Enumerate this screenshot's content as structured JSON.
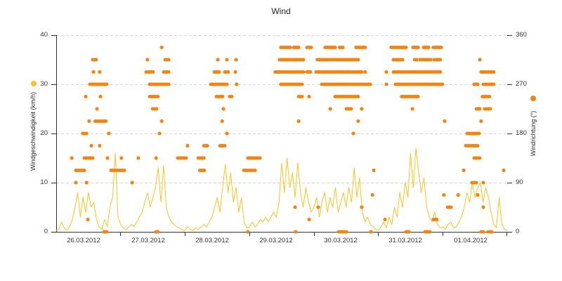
{
  "title": "Wind",
  "colors": {
    "speed": "#FFC222",
    "direction": "#F9820D",
    "grid": "#D8D8D8",
    "axis": "#333333"
  },
  "axes": {
    "left": {
      "title": "Windgeschwindigkeit (km/h)",
      "ticks": [
        "40",
        "30",
        "20",
        "10",
        "0"
      ],
      "range": [
        0,
        40
      ]
    },
    "right": {
      "title": "Windrichtung (°)",
      "ticks": [
        "360",
        "270",
        "180",
        "90",
        "0"
      ],
      "range": [
        0,
        360
      ]
    },
    "x": {
      "labels": [
        "26.03.2012",
        "27.03.2012",
        "28.03.2012",
        "29.03.2012",
        "30.03.2012",
        "31.03.2012",
        "01.04.2012"
      ]
    }
  },
  "chart_data": {
    "type": "line+scatter",
    "title": "Wind",
    "x_unit": "hours since 26.03.2012 00:00",
    "x_range": [
      0,
      168
    ],
    "grid": "dashed horizontal at left-axis 10/20/30/40 (right-axis 90/180/270/360)",
    "legend_position": "dots beside each y-axis title",
    "series": [
      {
        "name": "Windgeschwindigkeit",
        "type": "line",
        "axis": "left",
        "unit": "km/h",
        "color": "#FFC222",
        "ylim": [
          0,
          40
        ],
        "x_step_h": 1,
        "values": [
          0.3,
          0.5,
          2,
          0.8,
          0.3,
          1,
          2.5,
          5,
          8,
          3,
          7,
          4,
          8,
          5,
          6,
          2.5,
          1,
          0.5,
          2.5,
          1,
          5,
          7,
          16,
          3,
          1.5,
          0.8,
          0.4,
          1,
          1.5,
          1,
          2,
          3,
          4,
          6,
          8,
          5,
          7,
          9,
          13,
          6,
          13.5,
          5,
          3,
          2,
          1.5,
          1,
          0.8,
          0.4,
          0.3,
          1,
          0.5,
          0.3,
          0.8,
          0.5,
          1,
          1.5,
          1,
          2,
          3,
          5,
          7,
          4,
          9,
          13.7,
          8,
          12,
          6,
          9,
          4,
          7,
          2,
          0.8,
          1,
          2,
          1,
          1.5,
          2.5,
          2,
          3,
          2,
          3,
          4,
          3,
          6,
          14,
          8,
          15,
          9,
          12,
          7,
          14,
          8,
          5,
          9,
          6,
          4,
          5,
          7,
          3,
          6,
          8,
          4,
          7,
          5,
          9,
          4,
          6,
          8,
          5,
          9,
          6,
          13,
          7,
          11,
          4,
          2,
          3,
          1.5,
          1,
          0.5,
          0.3,
          1,
          2,
          0.8,
          3,
          1.5,
          5,
          3,
          8,
          5,
          10,
          7,
          16,
          9,
          17,
          12,
          8,
          11,
          5,
          3,
          2,
          4,
          1.5,
          0.8,
          1,
          0.5,
          1.5,
          2,
          0.8,
          1,
          2,
          3,
          5,
          8,
          6,
          10,
          7,
          9,
          10,
          6,
          9,
          7,
          4,
          1.5,
          0.8,
          7,
          1.5,
          0.5,
          0.3
        ]
      },
      {
        "name": "Windrichtung",
        "type": "scatter",
        "axis": "right",
        "unit": "°",
        "color": "#F9820D",
        "ylim": [
          0,
          360
        ],
        "quantization_deg": 22.5,
        "runs_format": "[start_hour, end_hour, degrees]",
        "runs": [
          [
            5.8,
            5.8,
            135
          ],
          [
            7.3,
            10.5,
            112.5
          ],
          [
            7.3,
            7.3,
            90
          ],
          [
            9.9,
            11.3,
            180
          ],
          [
            10.5,
            13.6,
            135
          ],
          [
            11,
            11,
            247.5
          ],
          [
            11.3,
            11.3,
            90
          ],
          [
            11.8,
            11.8,
            22.5
          ],
          [
            12.3,
            12.3,
            202.5
          ],
          [
            12.6,
            18.8,
            270
          ],
          [
            13.1,
            13.1,
            157.5
          ],
          [
            13.6,
            14.9,
            315
          ],
          [
            13.9,
            13.9,
            292.5
          ],
          [
            14.5,
            18.5,
            202.5
          ],
          [
            15.2,
            15.2,
            225
          ],
          [
            16.2,
            16.2,
            292.5
          ],
          [
            16.2,
            16.2,
            157.5
          ],
          [
            16.5,
            16.5,
            247.5
          ],
          [
            17.8,
            18.8,
            0
          ],
          [
            19.1,
            19.1,
            135
          ],
          [
            19.6,
            19.6,
            180
          ],
          [
            20.4,
            25.4,
            112.5
          ],
          [
            24.3,
            24.3,
            135
          ],
          [
            28.3,
            28.3,
            90
          ],
          [
            30.6,
            30.6,
            135
          ],
          [
            33.5,
            36.1,
            292.5
          ],
          [
            34,
            34,
            315
          ],
          [
            34.8,
            41.9,
            270
          ],
          [
            34.8,
            37.9,
            247.5
          ],
          [
            35.9,
            37.4,
            225
          ],
          [
            37.2,
            37.2,
            135
          ],
          [
            37.2,
            37.9,
            0
          ],
          [
            38.5,
            38.5,
            180
          ],
          [
            39.3,
            39.3,
            337.5
          ],
          [
            39.3,
            39.3,
            202.5
          ],
          [
            40,
            41.9,
            292.5
          ],
          [
            40.6,
            41.9,
            315
          ],
          [
            45.3,
            48.4,
            135
          ],
          [
            48.9,
            48.9,
            157.5
          ],
          [
            52.9,
            55,
            135
          ],
          [
            53.5,
            55.2,
            112.5
          ],
          [
            55,
            56.3,
            157.5
          ],
          [
            57.6,
            63.6,
            270
          ],
          [
            58.9,
            60.7,
            292.5
          ],
          [
            59.7,
            62,
            247.5
          ],
          [
            60.2,
            60.2,
            315
          ],
          [
            61,
            62.8,
            157.5
          ],
          [
            61.8,
            61.8,
            202.5
          ],
          [
            62.3,
            62.3,
            225
          ],
          [
            62.8,
            64.1,
            292.5
          ],
          [
            63.6,
            63.6,
            180
          ],
          [
            63.6,
            63.6,
            315
          ],
          [
            64.6,
            65.4,
            247.5
          ],
          [
            66.7,
            66.7,
            292.5
          ],
          [
            67,
            67,
            315
          ],
          [
            67.2,
            67.2,
            270
          ],
          [
            69.9,
            74.1,
            112.5
          ],
          [
            71.4,
            75.9,
            135
          ],
          [
            71.4,
            71.4,
            0
          ],
          [
            81.6,
            92.1,
            292.5
          ],
          [
            83.2,
            92.1,
            315
          ],
          [
            83.7,
            87.2,
            337.5
          ],
          [
            83.7,
            91.6,
            270
          ],
          [
            88.5,
            90.3,
            337.5
          ],
          [
            89,
            89,
            45
          ],
          [
            89.2,
            89.2,
            0
          ],
          [
            90.3,
            91.6,
            247.5
          ],
          [
            90.3,
            90.3,
            202.5
          ],
          [
            93.4,
            95,
            337.5
          ],
          [
            93.4,
            94.7,
            292.5
          ],
          [
            94.2,
            94.2,
            247.5
          ],
          [
            94.2,
            94.2,
            22.5
          ],
          [
            96.8,
            107.3,
            292.5
          ],
          [
            97.3,
            109.9,
            315
          ],
          [
            97.6,
            97.6,
            45
          ],
          [
            98.9,
            105.5,
            270
          ],
          [
            100.2,
            103.9,
            337.5
          ],
          [
            102.1,
            102.1,
            225
          ],
          [
            103.9,
            112.5,
            247.5
          ],
          [
            105.2,
            108.1,
            0
          ],
          [
            105.5,
            106.8,
            337.5
          ],
          [
            106,
            117,
            270
          ],
          [
            108.1,
            113.8,
            292.5
          ],
          [
            108.1,
            109.9,
            225
          ],
          [
            110.4,
            112.5,
            315
          ],
          [
            110.7,
            110.7,
            180
          ],
          [
            111.7,
            115.1,
            337.5
          ],
          [
            112.5,
            112.5,
            202.5
          ],
          [
            113.8,
            113.8,
            225
          ],
          [
            113.8,
            113.8,
            45
          ],
          [
            115.1,
            115.1,
            292.5
          ],
          [
            117.2,
            117.2,
            0
          ],
          [
            117.8,
            117.8,
            67.5
          ],
          [
            118.3,
            118.3,
            112.5
          ],
          [
            122.5,
            122.5,
            22.5
          ],
          [
            123,
            123,
            292.5
          ],
          [
            123,
            123,
            270
          ],
          [
            124.8,
            126.9,
            337.5
          ],
          [
            125.6,
            128.2,
            315
          ],
          [
            125.6,
            143.1,
            292.5
          ],
          [
            126.4,
            143.9,
            270
          ],
          [
            127.7,
            130.3,
            337.5
          ],
          [
            128.7,
            132.1,
            247.5
          ],
          [
            129,
            129,
            315
          ],
          [
            130.3,
            131.4,
            0
          ],
          [
            132.7,
            132.7,
            225
          ],
          [
            132.9,
            134.8,
            337.5
          ],
          [
            132.9,
            134.8,
            247.5
          ],
          [
            133.5,
            134.2,
            315
          ],
          [
            135.5,
            139.5,
            315
          ],
          [
            136.9,
            138.7,
            337.5
          ],
          [
            137.4,
            139.2,
            0
          ],
          [
            140.5,
            143.4,
            337.5
          ],
          [
            140.5,
            141.8,
            22.5
          ],
          [
            140.8,
            143.1,
            315
          ],
          [
            144.4,
            144.4,
            67.5
          ],
          [
            144.7,
            144.7,
            202.5
          ],
          [
            145.8,
            147.1,
            45
          ],
          [
            149.7,
            149.7,
            67.5
          ],
          [
            151.8,
            151.8,
            112.5
          ],
          [
            152.6,
            157,
            157.5
          ],
          [
            153.1,
            157.5,
            180
          ],
          [
            154.9,
            156.5,
            90
          ],
          [
            155.7,
            157.8,
            135
          ],
          [
            155.7,
            157,
            270
          ],
          [
            156.5,
            157.8,
            225
          ],
          [
            157,
            157,
            67.5
          ],
          [
            157.8,
            157.8,
            315
          ],
          [
            158.3,
            163,
            292.5
          ],
          [
            158.3,
            158.3,
            202.5
          ],
          [
            158.3,
            159.1,
            0
          ],
          [
            158.8,
            161.4,
            247.5
          ],
          [
            159.1,
            163,
            270
          ],
          [
            159.6,
            161.7,
            225
          ],
          [
            159.1,
            159.1,
            90
          ],
          [
            159.1,
            159.1,
            45
          ],
          [
            160.9,
            162.2,
            0
          ],
          [
            166.7,
            166.7,
            112.5
          ]
        ]
      }
    ]
  }
}
